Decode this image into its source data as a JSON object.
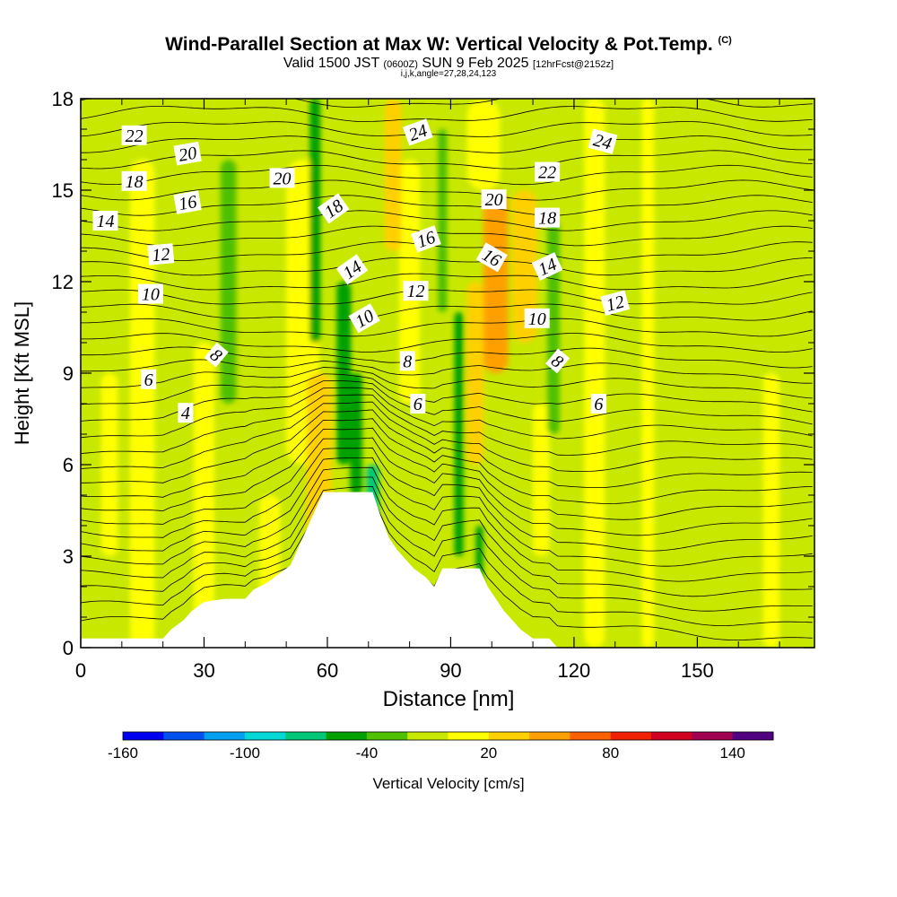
{
  "header": {
    "title": "Wind-Parallel Section at Max W: Vertical Velocity & Pot.Temp.",
    "copyright": "(C)",
    "valid_prefix": "Valid 1500 JST",
    "valid_utc": "(0600Z)",
    "valid_date": "SUN 9 Feb 2025",
    "forecast": "[12hrFcst@2152z]",
    "params": "i,j,k,angle=27,28,24,123"
  },
  "chart_data": {
    "type": "heatmap",
    "xlabel": "Distance [nm]",
    "ylabel": "Height [Kft MSL]",
    "xlim": [
      0,
      178.5
    ],
    "ylim": [
      0,
      18
    ],
    "xticks": [
      0,
      30,
      60,
      90,
      120,
      150
    ],
    "yticks": [
      0,
      3,
      6,
      9,
      12,
      15,
      18
    ],
    "colorbar": {
      "label": "Vertical Velocity [cm/s]",
      "tick_values": [
        -160,
        -100,
        -40,
        20,
        80,
        140
      ],
      "tick_labels": [
        "-160",
        "-100",
        "-40",
        "20",
        "80",
        "140"
      ],
      "bins": [
        -160,
        -140,
        -120,
        -100,
        -80,
        -60,
        -40,
        -20,
        0,
        20,
        40,
        60,
        80,
        100,
        120,
        140,
        160
      ],
      "colors": [
        "#0000f0",
        "#0050f0",
        "#00a0f0",
        "#00d8d8",
        "#00c878",
        "#00a000",
        "#50c000",
        "#c8e800",
        "#ffff00",
        "#ffd000",
        "#ffa000",
        "#ff6000",
        "#f02000",
        "#d00020",
        "#a00050",
        "#500080"
      ]
    },
    "updrafts": [
      {
        "x": 15,
        "w": 6,
        "v": 6,
        "b": 0,
        "t": 16
      },
      {
        "x": 30,
        "w": 5,
        "v": 5,
        "b": 0,
        "t": 10
      },
      {
        "x": 58,
        "w": 6,
        "v": 25,
        "b": 2,
        "t": 9
      },
      {
        "x": 54,
        "w": 8,
        "v": 14,
        "b": 6,
        "t": 16
      },
      {
        "x": 46,
        "w": 5,
        "v": 18,
        "b": 1,
        "t": 5
      },
      {
        "x": 76,
        "w": 4,
        "v": 35,
        "b": 13,
        "t": 18
      },
      {
        "x": 80,
        "w": 5,
        "v": 18,
        "b": 8,
        "t": 16
      },
      {
        "x": 96,
        "w": 4,
        "v": 25,
        "b": 6,
        "t": 12
      },
      {
        "x": 101,
        "w": 6,
        "v": 40,
        "b": 9,
        "t": 15
      },
      {
        "x": 108,
        "w": 6,
        "v": 22,
        "b": 10,
        "t": 15
      },
      {
        "x": 112,
        "w": 4,
        "v": 12,
        "b": 3,
        "t": 8
      },
      {
        "x": 98,
        "w": 8,
        "v": 8,
        "b": 15,
        "t": 18
      },
      {
        "x": 125,
        "w": 5,
        "v": 12,
        "b": 0,
        "t": 18
      },
      {
        "x": 138,
        "w": 3,
        "v": 12,
        "b": 0,
        "t": 18
      },
      {
        "x": 168,
        "w": 4,
        "v": 10,
        "b": 0,
        "t": 9
      },
      {
        "x": 7,
        "w": 4,
        "v": 6,
        "b": 3,
        "t": 9
      }
    ],
    "downdrafts": [
      {
        "x": 36,
        "w": 4,
        "v": -25,
        "b": 8,
        "t": 16
      },
      {
        "x": 40,
        "w": 5,
        "v": -10,
        "b": 1,
        "t": 18
      },
      {
        "x": 57,
        "w": 2.6,
        "v": -45,
        "b": 10,
        "t": 18
      },
      {
        "x": 64,
        "w": 3.5,
        "v": -50,
        "b": 6,
        "t": 12
      },
      {
        "x": 67,
        "w": 3,
        "v": -55,
        "b": 5,
        "t": 9
      },
      {
        "x": 71,
        "w": 3,
        "v": -70,
        "b": 2,
        "t": 6
      },
      {
        "x": 88,
        "w": 2.2,
        "v": -35,
        "b": 11,
        "t": 17
      },
      {
        "x": 92,
        "w": 2.2,
        "v": -45,
        "b": 3,
        "t": 11
      },
      {
        "x": 97,
        "w": 1.8,
        "v": -60,
        "b": 2,
        "t": 4
      },
      {
        "x": 115,
        "w": 3,
        "v": -25,
        "b": 7,
        "t": 14
      },
      {
        "x": 131,
        "w": 2.5,
        "v": -20,
        "b": 5,
        "t": 11
      },
      {
        "x": 22,
        "w": 3,
        "v": -10,
        "b": 9,
        "t": 16
      },
      {
        "x": 120,
        "w": 4,
        "v": -10,
        "b": 2,
        "t": 8
      }
    ],
    "terrain": [
      [
        0,
        0.3
      ],
      [
        20,
        0.3
      ],
      [
        22,
        0.6
      ],
      [
        25,
        0.9
      ],
      [
        27,
        1.2
      ],
      [
        30,
        1.5
      ],
      [
        35,
        1.6
      ],
      [
        40,
        1.6
      ],
      [
        42,
        1.9
      ],
      [
        45,
        2.1
      ],
      [
        48,
        2.4
      ],
      [
        51,
        2.7
      ],
      [
        53,
        3.3
      ],
      [
        55,
        3.9
      ],
      [
        57,
        4.5
      ],
      [
        59,
        5.1
      ],
      [
        62,
        5.1
      ],
      [
        66,
        5.1
      ],
      [
        71,
        5.1
      ],
      [
        73,
        4.3
      ],
      [
        75,
        3.6
      ],
      [
        77,
        3.2
      ],
      [
        79,
        2.9
      ],
      [
        81,
        2.6
      ],
      [
        84,
        2.3
      ],
      [
        86,
        2.0
      ],
      [
        88,
        2.6
      ],
      [
        92,
        2.6
      ],
      [
        97,
        2.6
      ],
      [
        99,
        2.0
      ],
      [
        101,
        1.6
      ],
      [
        103,
        1.2
      ],
      [
        105,
        0.9
      ],
      [
        107,
        0.6
      ],
      [
        110,
        0.3
      ],
      [
        114,
        0.3
      ],
      [
        116,
        0
      ],
      [
        178.5,
        0
      ]
    ],
    "theta_level_spacing_kft": 0.5,
    "theta_label_values": [
      "4",
      "6",
      "8",
      "10",
      "12",
      "14",
      "16",
      "18",
      "20",
      "22",
      "24"
    ],
    "theta_labels": [
      {
        "text": "22",
        "x": 13,
        "y": 16.8,
        "rot": 0
      },
      {
        "text": "20",
        "x": 26,
        "y": 16.2,
        "rot": 10
      },
      {
        "text": "18",
        "x": 13,
        "y": 15.3,
        "rot": 0
      },
      {
        "text": "16",
        "x": 26,
        "y": 14.6,
        "rot": 10
      },
      {
        "text": "14",
        "x": 6,
        "y": 14.0,
        "rot": 0
      },
      {
        "text": "12",
        "x": 19.5,
        "y": 12.9,
        "rot": 5
      },
      {
        "text": "10",
        "x": 17,
        "y": 11.6,
        "rot": 0
      },
      {
        "text": "8",
        "x": 33,
        "y": 9.6,
        "rot": -40
      },
      {
        "text": "6",
        "x": 16.5,
        "y": 8.8,
        "rot": 0
      },
      {
        "text": "4",
        "x": 25.5,
        "y": 7.7,
        "rot": 0
      },
      {
        "text": "20",
        "x": 49,
        "y": 15.4,
        "rot": 0
      },
      {
        "text": "18",
        "x": 61.5,
        "y": 14.4,
        "rot": 35
      },
      {
        "text": "14",
        "x": 66,
        "y": 12.4,
        "rot": 35
      },
      {
        "text": "10",
        "x": 69,
        "y": 10.8,
        "rot": 30
      },
      {
        "text": "24",
        "x": 82,
        "y": 16.9,
        "rot": 20
      },
      {
        "text": "16",
        "x": 84,
        "y": 13.4,
        "rot": 20
      },
      {
        "text": "12",
        "x": 81.5,
        "y": 11.7,
        "rot": 0
      },
      {
        "text": "8",
        "x": 79.5,
        "y": 9.4,
        "rot": 0
      },
      {
        "text": "6",
        "x": 82,
        "y": 8.0,
        "rot": 0
      },
      {
        "text": "20",
        "x": 100.5,
        "y": 14.7,
        "rot": 0
      },
      {
        "text": "16",
        "x": 100,
        "y": 12.8,
        "rot": -30
      },
      {
        "text": "22",
        "x": 113.5,
        "y": 15.6,
        "rot": 0
      },
      {
        "text": "18",
        "x": 113.5,
        "y": 14.1,
        "rot": 0
      },
      {
        "text": "14",
        "x": 113.5,
        "y": 12.5,
        "rot": 25
      },
      {
        "text": "10",
        "x": 111,
        "y": 10.8,
        "rot": 0
      },
      {
        "text": "8",
        "x": 116,
        "y": 9.4,
        "rot": -40
      },
      {
        "text": "24",
        "x": 127,
        "y": 16.6,
        "rot": -15
      },
      {
        "text": "12",
        "x": 130,
        "y": 11.3,
        "rot": 15
      },
      {
        "text": "6",
        "x": 126,
        "y": 8.0,
        "rot": 0
      }
    ]
  }
}
